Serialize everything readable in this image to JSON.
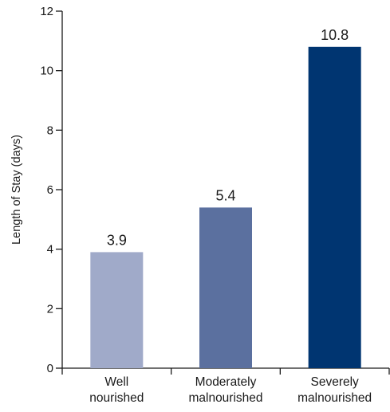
{
  "chart_data": {
    "type": "bar",
    "categories": [
      [
        "Well",
        "nourished"
      ],
      [
        "Moderately",
        "malnourished"
      ],
      [
        "Severely",
        "malnourished"
      ]
    ],
    "values": [
      3.9,
      5.4,
      10.8
    ],
    "data_labels": [
      "3.9",
      "5.4",
      "10.8"
    ],
    "bar_colors": [
      "#a0aac9",
      "#5b709f",
      "#003571"
    ],
    "ylabel": "Length of Stay (days)",
    "xlabel": "",
    "ylim": [
      0,
      12
    ],
    "yticks": [
      0,
      2,
      4,
      6,
      8,
      10,
      12
    ],
    "grid": false,
    "legend": "none"
  }
}
